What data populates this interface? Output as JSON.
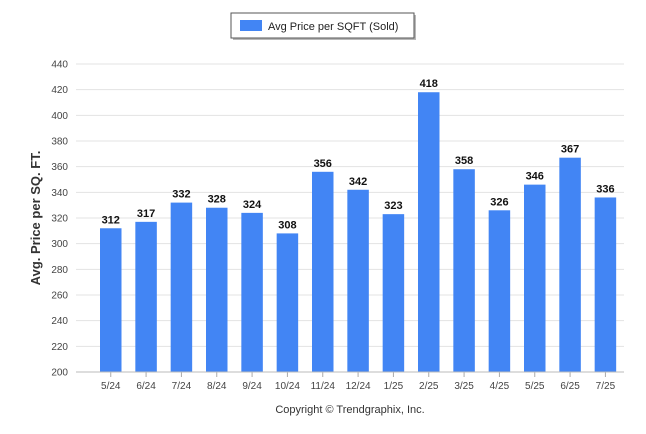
{
  "chart_data": {
    "type": "bar",
    "title": "",
    "xlabel": "",
    "ylabel": "Avg. Price per SQ. FT.",
    "ylim": [
      200,
      440
    ],
    "ytick_step": 20,
    "grid": true,
    "legend_position": "top-center",
    "categories": [
      "5/24",
      "6/24",
      "7/24",
      "8/24",
      "9/24",
      "10/24",
      "11/24",
      "12/24",
      "1/25",
      "2/25",
      "3/25",
      "4/25",
      "5/25",
      "6/25",
      "7/25"
    ],
    "series": [
      {
        "name": "Avg Price per SQFT (Sold)",
        "color": "#4285f4",
        "values": [
          312,
          317,
          332,
          328,
          324,
          308,
          356,
          342,
          323,
          418,
          358,
          326,
          346,
          367,
          336
        ]
      }
    ]
  },
  "footer": {
    "credit": "Copyright © Trendgraphix, Inc."
  }
}
